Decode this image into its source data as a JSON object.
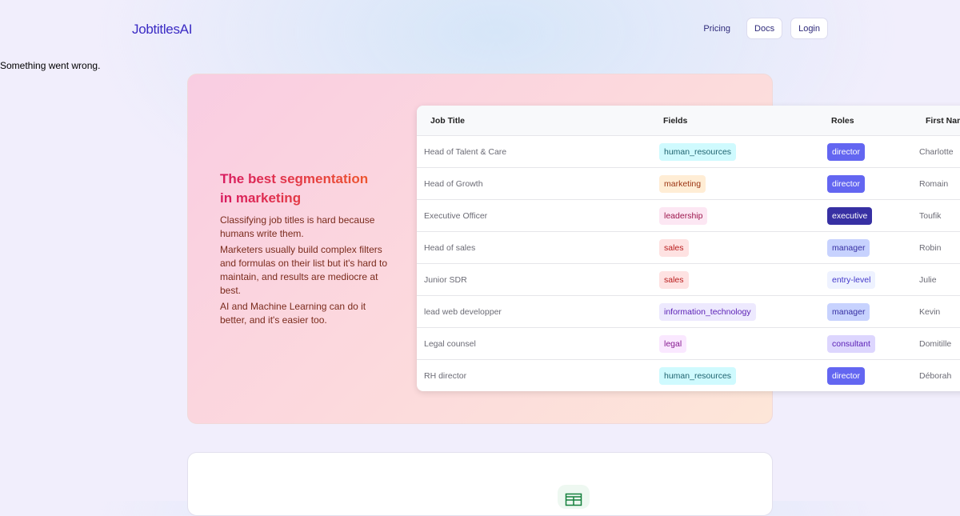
{
  "header": {
    "logo": "JobtitlesAI",
    "nav": {
      "pricing": "Pricing",
      "docs": "Docs",
      "login": "Login"
    }
  },
  "error_message": "Something went wrong.",
  "hero": {
    "title": "The best segmentation in marketing",
    "paragraphs": [
      "Classifying job titles is hard because humans write them.",
      "Marketers usually build complex filters and formulas on their list but it's hard to maintain, and results are mediocre at best.",
      "AI and Machine Learning can do it better, and it's easier too."
    ]
  },
  "table": {
    "headers": [
      "Job Title",
      "Fields",
      "Roles",
      "First Name"
    ],
    "rows": [
      {
        "job_title": "Head of Talent & Care",
        "field": "human_resources",
        "role": "director",
        "first_name": "Charlotte"
      },
      {
        "job_title": "Head of Growth",
        "field": "marketing",
        "role": "director",
        "first_name": "Romain"
      },
      {
        "job_title": "Executive Officer",
        "field": "leadership",
        "role": "executive",
        "first_name": "Toufik"
      },
      {
        "job_title": "Head of sales",
        "field": "sales",
        "role": "manager",
        "first_name": "Robin"
      },
      {
        "job_title": "Junior SDR",
        "field": "sales",
        "role": "entry-level",
        "first_name": "Julie"
      },
      {
        "job_title": "lead web developper",
        "field": "information_technology",
        "role": "manager",
        "first_name": "Kevin"
      },
      {
        "job_title": "Legal counsel",
        "field": "legal",
        "role": "consultant",
        "first_name": "Domitille"
      },
      {
        "job_title": "RH director",
        "field": "human_resources",
        "role": "director",
        "first_name": "Déborah"
      }
    ]
  },
  "tag_colors": {
    "human_resources": {
      "bg": "#cffafe",
      "fg": "#1f6470"
    },
    "marketing": {
      "bg": "#ffedd5",
      "fg": "#9a3412"
    },
    "leadership": {
      "bg": "#fce7f3",
      "fg": "#9d174d"
    },
    "sales": {
      "bg": "#fee2e2",
      "fg": "#b91c1c"
    },
    "information_technology": {
      "bg": "#ede9fe",
      "fg": "#5b21b6"
    },
    "legal": {
      "bg": "#fae8ff",
      "fg": "#86198f"
    },
    "director": {
      "bg": "#6366f1",
      "fg": "#ffffff"
    },
    "executive": {
      "bg": "#3730a3",
      "fg": "#ffffff"
    },
    "manager": {
      "bg": "#c7d2fe",
      "fg": "#3730a3"
    },
    "entry-level": {
      "bg": "#eef2ff",
      "fg": "#4338ca"
    },
    "consultant": {
      "bg": "#ddd6fe",
      "fg": "#5b21b6"
    }
  },
  "feature_icon": "spreadsheet-icon"
}
